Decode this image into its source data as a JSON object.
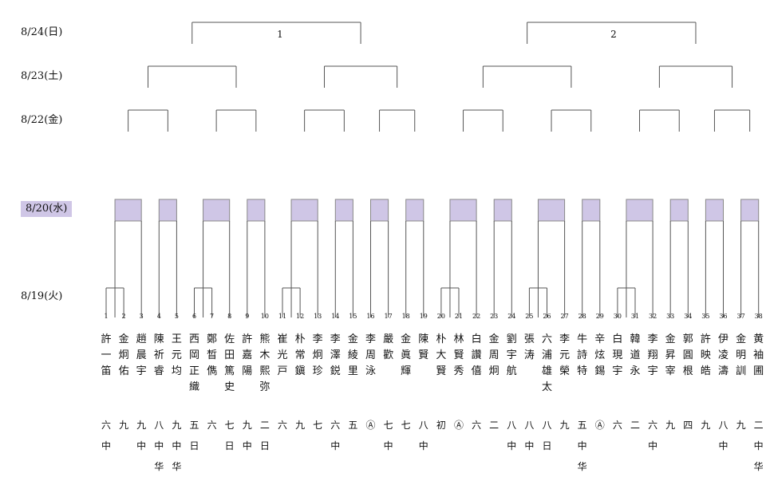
{
  "dates": {
    "d1": "8/24(日)",
    "d2": "8/23(土)",
    "d3": "8/22(金)",
    "d4": "8/20(水)",
    "d5": "8/19(火)"
  },
  "finals": [
    "1",
    "2"
  ],
  "players": [
    {
      "num": "1",
      "name": "許一笛",
      "grade": "六中"
    },
    {
      "num": "2",
      "name": "金炯佑",
      "grade": "九"
    },
    {
      "num": "3",
      "name": "趙晨宇",
      "grade": "九中"
    },
    {
      "num": "4",
      "name": "陳祈睿",
      "grade": "八中华"
    },
    {
      "num": "5",
      "name": "王元均",
      "grade": "九中华"
    },
    {
      "num": "6",
      "name": "西岡正織",
      "grade": "五日"
    },
    {
      "num": "7",
      "name": "鄭晳儁",
      "grade": "六"
    },
    {
      "num": "8",
      "name": "佐田篤史",
      "grade": "七日"
    },
    {
      "num": "9",
      "name": "許嘉陽",
      "grade": "九中"
    },
    {
      "num": "10",
      "name": "熊木熙弥",
      "grade": "二日"
    },
    {
      "num": "11",
      "name": "崔光戸",
      "grade": "六"
    },
    {
      "num": "12",
      "name": "朴常鎭",
      "grade": "九"
    },
    {
      "num": "13",
      "name": "李炯珍",
      "grade": "七"
    },
    {
      "num": "14",
      "name": "李澤鋭",
      "grade": "六中"
    },
    {
      "num": "15",
      "name": "金綾里",
      "grade": "五"
    },
    {
      "num": "16",
      "name": "李周泳",
      "grade": "Ⓐ"
    },
    {
      "num": "17",
      "name": "嚴歡",
      "grade": "七中"
    },
    {
      "num": "18",
      "name": "金眞輝",
      "grade": "七"
    },
    {
      "num": "19",
      "name": "陳賢",
      "grade": "八中"
    },
    {
      "num": "20",
      "name": "朴大賢",
      "grade": "初"
    },
    {
      "num": "21",
      "name": "林賢秀",
      "grade": "Ⓐ"
    },
    {
      "num": "22",
      "name": "白讚僖",
      "grade": "六"
    },
    {
      "num": "23",
      "name": "金周炯",
      "grade": "二"
    },
    {
      "num": "24",
      "name": "劉宇航",
      "grade": "八中"
    },
    {
      "num": "25",
      "name": "張涛",
      "grade": "八中"
    },
    {
      "num": "26",
      "name": "六浦雄太",
      "grade": "八日"
    },
    {
      "num": "27",
      "name": "李元榮",
      "grade": "九"
    },
    {
      "num": "28",
      "name": "牛詩特",
      "grade": "五中华"
    },
    {
      "num": "29",
      "name": "辛炫錫",
      "grade": "Ⓐ"
    },
    {
      "num": "30",
      "name": "白現宇",
      "grade": "六"
    },
    {
      "num": "31",
      "name": "韓道永",
      "grade": "二"
    },
    {
      "num": "32",
      "name": "李翔宇",
      "grade": "六中"
    },
    {
      "num": "33",
      "name": "金昇宰",
      "grade": "九"
    },
    {
      "num": "34",
      "name": "郭圓根",
      "grade": "四"
    },
    {
      "num": "35",
      "name": "許映皓",
      "grade": "九"
    },
    {
      "num": "36",
      "name": "伊凌濤",
      "grade": "八中"
    },
    {
      "num": "37",
      "name": "金明訓",
      "grade": "九"
    },
    {
      "num": "38",
      "name": "黄袖圃",
      "grade": "二中华"
    }
  ]
}
